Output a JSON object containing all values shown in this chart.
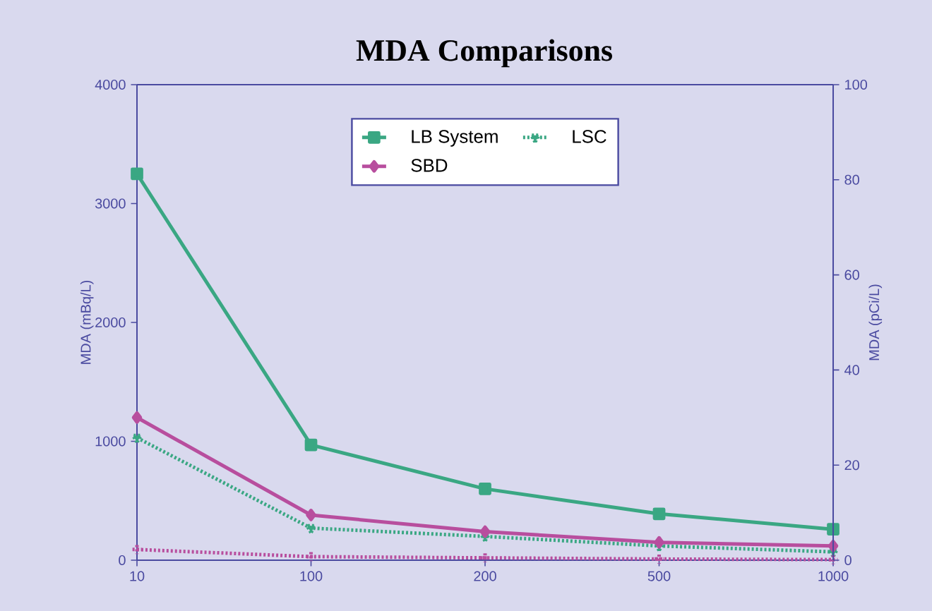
{
  "chart_data": {
    "type": "line",
    "title": "MDA Comparisons",
    "categories": [
      "10",
      "100",
      "200",
      "500",
      "1000"
    ],
    "ylabel": "MDA (mBq/L)",
    "y2label": "MDA (pCi/L)",
    "ylim": [
      0,
      4000
    ],
    "yticks": [
      0,
      1000,
      2000,
      3000,
      4000
    ],
    "y2lim": [
      0,
      100
    ],
    "y2ticks": [
      0,
      20,
      40,
      60,
      80,
      100
    ],
    "legend": "top",
    "grid": false,
    "series": [
      {
        "name": "LB System",
        "color": "#3aa783",
        "marker": "square",
        "line_style": "solid",
        "values": [
          3250,
          970,
          600,
          390,
          260
        ]
      },
      {
        "name": "LSC",
        "color": "#3aa783",
        "marker": "triangle",
        "line_style": "dotted",
        "values": [
          1030,
          270,
          200,
          120,
          70
        ]
      },
      {
        "name": "SBD",
        "color": "#b84e9e",
        "marker": "diamond",
        "line_style": "solid",
        "values": [
          1200,
          380,
          240,
          150,
          120
        ]
      },
      {
        "color": "#b84e9e",
        "marker": "cross",
        "line_style": "dotted",
        "values": [
          90,
          30,
          20,
          10,
          5
        ]
      }
    ]
  }
}
